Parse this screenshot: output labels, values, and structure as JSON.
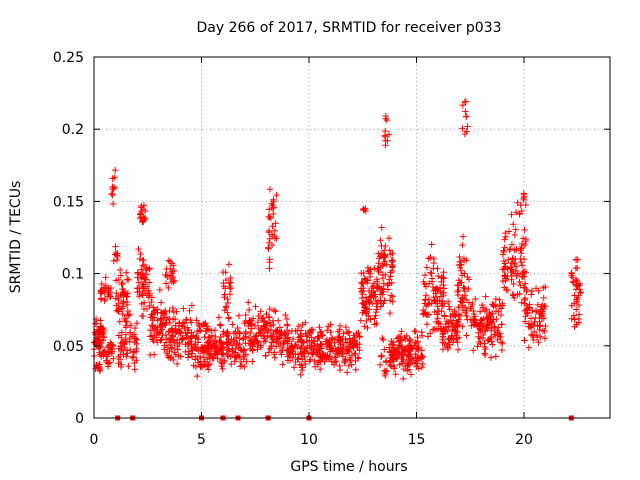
{
  "chart_data": {
    "type": "scatter",
    "title": "Day 266 of 2017, SRMTID for receiver p033",
    "xlabel": "GPS time / hours",
    "ylabel": "SRMTID / TECUs",
    "xlim": [
      0,
      24
    ],
    "ylim": [
      0,
      0.25
    ],
    "x_ticks": [
      0,
      5,
      10,
      15,
      20
    ],
    "x_tick_labels": [
      "0",
      "5",
      "10",
      "15",
      "20"
    ],
    "y_ticks": [
      0,
      0.05,
      0.1,
      0.15,
      0.2,
      0.25
    ],
    "y_tick_labels": [
      "0",
      "0.05",
      "0.1",
      "0.15",
      "0.2",
      "0.25"
    ],
    "grid": true,
    "marker": "plus",
    "color": "#ff0000",
    "series": [
      {
        "name": "SRMTID",
        "approximate": true,
        "clusters": [
          {
            "t0": 0.0,
            "t1": 0.5,
            "base": 0.055,
            "spread": 0.015,
            "n": 60
          },
          {
            "t0": 0.1,
            "t1": 0.3,
            "base": 0.035,
            "spread": 0.005,
            "n": 12
          },
          {
            "t0": 0.3,
            "t1": 0.8,
            "base": 0.085,
            "spread": 0.008,
            "n": 30
          },
          {
            "t0": 0.5,
            "t1": 0.9,
            "base": 0.045,
            "spread": 0.008,
            "n": 25
          },
          {
            "t0": 0.8,
            "t1": 1.0,
            "base": 0.16,
            "spread": 0.012,
            "n": 10
          },
          {
            "t0": 0.9,
            "t1": 1.1,
            "base": 0.118,
            "spread": 0.008,
            "n": 8
          },
          {
            "t0": 1.0,
            "t1": 1.6,
            "base": 0.085,
            "spread": 0.015,
            "n": 40
          },
          {
            "t0": 1.1,
            "t1": 1.4,
            "base": 0.05,
            "spread": 0.015,
            "n": 20
          },
          {
            "t0": 1.4,
            "t1": 2.0,
            "base": 0.055,
            "spread": 0.02,
            "n": 40
          },
          {
            "t0": 2.0,
            "t1": 2.6,
            "base": 0.095,
            "spread": 0.02,
            "n": 55
          },
          {
            "t0": 2.1,
            "t1": 2.4,
            "base": 0.14,
            "spread": 0.008,
            "n": 18
          },
          {
            "t0": 2.6,
            "t1": 3.4,
            "base": 0.065,
            "spread": 0.018,
            "n": 70
          },
          {
            "t0": 3.3,
            "t1": 3.8,
            "base": 0.1,
            "spread": 0.01,
            "n": 20
          },
          {
            "t0": 3.4,
            "t1": 4.5,
            "base": 0.058,
            "spread": 0.016,
            "n": 90
          },
          {
            "t0": 4.5,
            "t1": 5.4,
            "base": 0.052,
            "spread": 0.018,
            "n": 80
          },
          {
            "t0": 5.3,
            "t1": 6.0,
            "base": 0.05,
            "spread": 0.016,
            "n": 60
          },
          {
            "t0": 6.0,
            "t1": 6.4,
            "base": 0.085,
            "spread": 0.02,
            "n": 25
          },
          {
            "t0": 6.0,
            "t1": 7.0,
            "base": 0.048,
            "spread": 0.016,
            "n": 70
          },
          {
            "t0": 7.0,
            "t1": 8.0,
            "base": 0.058,
            "spread": 0.016,
            "n": 80
          },
          {
            "t0": 8.1,
            "t1": 8.5,
            "base": 0.128,
            "spread": 0.025,
            "n": 30
          },
          {
            "t0": 8.0,
            "t1": 9.0,
            "base": 0.056,
            "spread": 0.015,
            "n": 70
          },
          {
            "t0": 9.0,
            "t1": 10.5,
            "base": 0.05,
            "spread": 0.014,
            "n": 120
          },
          {
            "t0": 10.5,
            "t1": 12.4,
            "base": 0.048,
            "spread": 0.013,
            "n": 150
          },
          {
            "t0": 12.4,
            "t1": 13.2,
            "base": 0.085,
            "spread": 0.02,
            "n": 80
          },
          {
            "t0": 12.5,
            "t1": 12.8,
            "base": 0.143,
            "spread": 0.004,
            "n": 6
          },
          {
            "t0": 13.2,
            "t1": 13.9,
            "base": 0.1,
            "spread": 0.03,
            "n": 70
          },
          {
            "t0": 13.5,
            "t1": 13.8,
            "base": 0.2,
            "spread": 0.02,
            "n": 10
          },
          {
            "t0": 13.3,
            "t1": 14.0,
            "base": 0.045,
            "spread": 0.012,
            "n": 40
          },
          {
            "t0": 13.9,
            "t1": 15.3,
            "base": 0.045,
            "spread": 0.012,
            "n": 110
          },
          {
            "t0": 15.3,
            "t1": 16.3,
            "base": 0.085,
            "spread": 0.025,
            "n": 90
          },
          {
            "t0": 16.2,
            "t1": 17.0,
            "base": 0.062,
            "spread": 0.018,
            "n": 70
          },
          {
            "t0": 16.9,
            "t1": 17.5,
            "base": 0.09,
            "spread": 0.03,
            "n": 50
          },
          {
            "t0": 17.1,
            "t1": 17.4,
            "base": 0.21,
            "spread": 0.02,
            "n": 10
          },
          {
            "t0": 17.5,
            "t1": 19.0,
            "base": 0.065,
            "spread": 0.018,
            "n": 120
          },
          {
            "t0": 19.0,
            "t1": 20.1,
            "base": 0.105,
            "spread": 0.025,
            "n": 90
          },
          {
            "t0": 19.6,
            "t1": 20.1,
            "base": 0.15,
            "spread": 0.012,
            "n": 12
          },
          {
            "t0": 20.0,
            "t1": 21.0,
            "base": 0.07,
            "spread": 0.02,
            "n": 70
          },
          {
            "t0": 22.2,
            "t1": 22.7,
            "base": 0.085,
            "spread": 0.025,
            "n": 40
          }
        ]
      }
    ],
    "zero_markers_x": [
      1.1,
      1.8,
      5.0,
      6.0,
      6.7,
      8.1,
      10.0,
      22.2
    ]
  }
}
